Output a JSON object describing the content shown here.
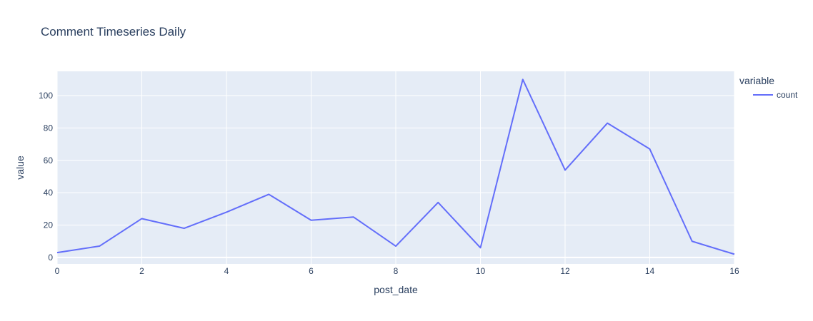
{
  "chart_data": {
    "type": "line",
    "title": "Comment Timeseries Daily",
    "xlabel": "post_date",
    "ylabel": "value",
    "xlim": [
      0,
      16
    ],
    "ylim": [
      -4,
      115
    ],
    "x_ticks": [
      0,
      2,
      4,
      6,
      8,
      10,
      12,
      14,
      16
    ],
    "y_ticks": [
      0,
      20,
      40,
      60,
      80,
      100
    ],
    "x_tick_labels": [
      "0",
      "2",
      "4",
      "6",
      "8",
      "10",
      "12",
      "14",
      "16"
    ],
    "y_tick_labels": [
      "0",
      "20",
      "40",
      "60",
      "80",
      "100"
    ],
    "grid": true,
    "legend": {
      "title": "variable",
      "placement": "right"
    },
    "series": [
      {
        "name": "count",
        "color": "#636efa",
        "x": [
          0,
          1,
          2,
          3,
          4,
          5,
          6,
          7,
          8,
          9,
          10,
          11,
          12,
          13,
          14,
          15,
          16
        ],
        "values": [
          3,
          7,
          24,
          18,
          28,
          39,
          23,
          25,
          7,
          34,
          6,
          110,
          54,
          83,
          67,
          10,
          2
        ]
      }
    ]
  },
  "colors": {
    "plot_background": "#e5ecf6",
    "grid": "#ffffff",
    "text": "#2a3f5f"
  }
}
